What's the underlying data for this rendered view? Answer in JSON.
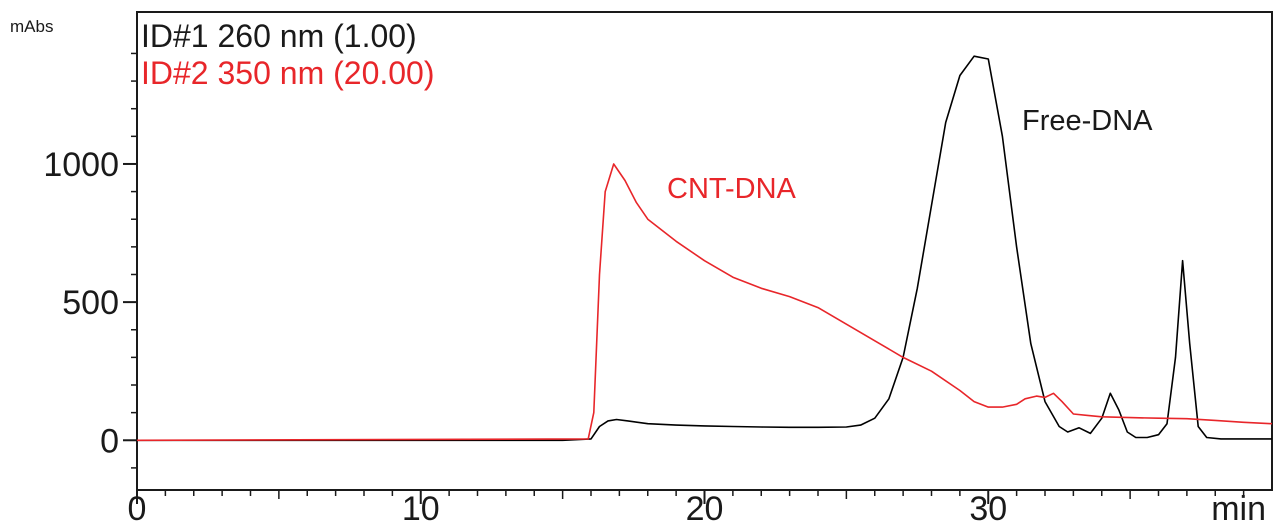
{
  "chart_data": {
    "type": "line",
    "title": "",
    "xlabel": "min",
    "ylabel": "mAbs",
    "xlim": [
      0,
      40
    ],
    "ylim": [
      -180,
      1550
    ],
    "x_ticks": [
      "0",
      "10",
      "20",
      "30"
    ],
    "y_ticks": [
      "0",
      "500",
      "1000"
    ],
    "x_tick_values": [
      0,
      10,
      20,
      30
    ],
    "y_tick_values": [
      0,
      500,
      1000
    ],
    "grid": false,
    "legend_position": "top-left",
    "annotations": [
      {
        "text": "CNT-DNA",
        "x": 18.5,
        "y": 900,
        "color": "#e8262a"
      },
      {
        "text": "Free-DNA",
        "x": 31.2,
        "y": 1150,
        "color": "#1a1a1a"
      }
    ],
    "series": [
      {
        "name": "ID#1 260 nm (1.00)",
        "color": "#000000",
        "x": [
          0,
          15,
          16.0,
          16.3,
          16.6,
          16.9,
          17.3,
          18,
          19,
          20,
          21,
          22,
          23,
          24,
          25,
          25.5,
          26,
          26.5,
          27,
          27.5,
          28,
          28.5,
          29,
          29.5,
          30,
          30.5,
          31,
          31.5,
          32,
          32.5,
          32.8,
          33.2,
          33.6,
          34.0,
          34.3,
          34.6,
          34.9,
          35.2,
          35.6,
          36.0,
          36.3,
          36.6,
          36.85,
          37.1,
          37.4,
          37.7,
          38.2,
          40
        ],
        "y": [
          0,
          0,
          5,
          50,
          70,
          75,
          70,
          60,
          55,
          52,
          50,
          48,
          47,
          47,
          48,
          55,
          80,
          150,
          300,
          550,
          850,
          1150,
          1320,
          1390,
          1380,
          1100,
          700,
          350,
          140,
          50,
          30,
          45,
          25,
          80,
          170,
          110,
          30,
          10,
          10,
          20,
          60,
          300,
          650,
          350,
          50,
          10,
          5,
          5
        ]
      },
      {
        "name": "ID#2 350 nm (20.00)",
        "color": "#e8262a",
        "x": [
          0,
          15.9,
          16.1,
          16.3,
          16.5,
          16.8,
          17.2,
          17.6,
          18,
          19,
          20,
          21,
          22,
          23,
          24,
          25,
          26,
          27,
          28,
          29,
          29.5,
          30,
          30.5,
          31,
          31.3,
          31.7,
          32.0,
          32.3,
          32.6,
          33,
          33.5,
          34,
          35,
          36,
          37,
          38,
          39,
          40
        ],
        "y": [
          0,
          5,
          100,
          600,
          900,
          1000,
          940,
          860,
          800,
          720,
          650,
          590,
          550,
          520,
          480,
          420,
          360,
          300,
          250,
          180,
          140,
          120,
          120,
          130,
          150,
          160,
          155,
          170,
          140,
          95,
          90,
          85,
          82,
          80,
          78,
          72,
          65,
          60
        ]
      }
    ]
  }
}
